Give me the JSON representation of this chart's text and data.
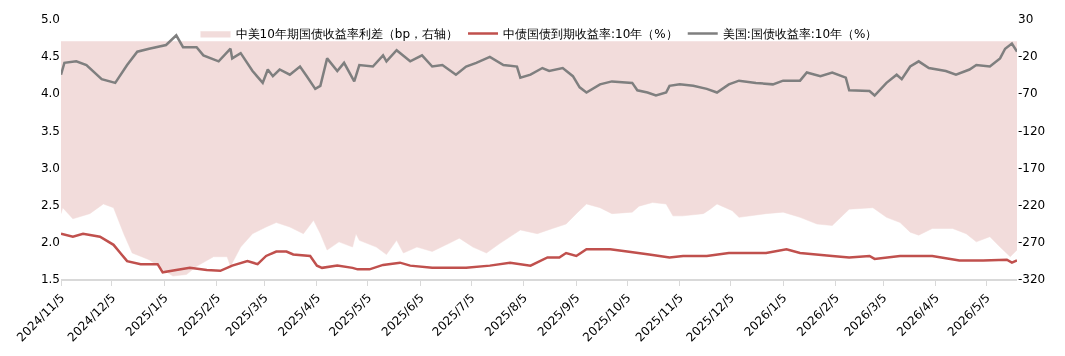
{
  "chart_data": {
    "type": "line",
    "xlim": [
      "2024-11-05",
      "2026-05-23"
    ],
    "xticks": [
      {
        "value": "2024-11-05",
        "label": "2024/11/5"
      },
      {
        "value": "2024-12-05",
        "label": "2024/12/5"
      },
      {
        "value": "2025-01-05",
        "label": "2025/1/5"
      },
      {
        "value": "2025-02-05",
        "label": "2025/2/5"
      },
      {
        "value": "2025-03-05",
        "label": "2025/3/5"
      },
      {
        "value": "2025-04-05",
        "label": "2025/4/5"
      },
      {
        "value": "2025-05-05",
        "label": "2025/5/5"
      },
      {
        "value": "2025-06-05",
        "label": "2025/6/5"
      },
      {
        "value": "2025-07-05",
        "label": "2025/7/5"
      },
      {
        "value": "2025-08-05",
        "label": "2025/8/5"
      },
      {
        "value": "2025-09-05",
        "label": "2025/9/5"
      },
      {
        "value": "2025-10-05",
        "label": "2025/10/5"
      },
      {
        "value": "2025-11-05",
        "label": "2025/11/5"
      },
      {
        "value": "2025-12-05",
        "label": "2025/12/5"
      },
      {
        "value": "2026-01-05",
        "label": "2026/1/5"
      },
      {
        "value": "2026-02-05",
        "label": "2026/2/5"
      },
      {
        "value": "2026-03-05",
        "label": "2026/3/5"
      },
      {
        "value": "2026-04-05",
        "label": "2026/4/5"
      },
      {
        "value": "2026-05-05",
        "label": "2026/5/5"
      }
    ],
    "ylim": [
      1.5,
      5.0
    ],
    "yticks": [
      1.5,
      {
        "value": 2,
        "label": "2.0"
      },
      2.5,
      {
        "value": 3,
        "label": "3.0"
      },
      3.5,
      {
        "value": 4,
        "label": "4.0"
      },
      4.5,
      {
        "value": 5,
        "label": "5.0"
      }
    ],
    "y2lim": [
      -320,
      30
    ],
    "y2ticks": [
      -320,
      -270,
      -220,
      -170,
      -120,
      -70,
      -20,
      30
    ],
    "legend": "top",
    "series": [
      {
        "name": "中美10年期国债收益率利差（bp，右轴）",
        "type": "area",
        "axis": "y2",
        "color": "#f2dcdb",
        "x": [
          "2024-11-05",
          "2024-11-06",
          "2024-11-12",
          "2024-11-22",
          "2024-11-30",
          "2024-12-06",
          "2024-12-12",
          "2024-12-17",
          "2024-12-27",
          "2025-01-04",
          "2025-01-10",
          "2025-01-18",
          "2025-01-24",
          "2025-02-03",
          "2025-02-11",
          "2025-02-13",
          "2025-02-19",
          "2025-02-26",
          "2025-03-06",
          "2025-03-12",
          "2025-03-20",
          "2025-03-28",
          "2025-04-03",
          "2025-04-07",
          "2025-04-11",
          "2025-04-18",
          "2025-04-26",
          "2025-04-28",
          "2025-04-30",
          "2025-05-10",
          "2025-05-16",
          "2025-05-22",
          "2025-05-26",
          "2025-06-03",
          "2025-06-12",
          "2025-06-22",
          "2025-06-28",
          "2025-07-06",
          "2025-07-14",
          "2025-07-22",
          "2025-08-03",
          "2025-08-13",
          "2025-08-22",
          "2025-08-30",
          "2025-09-05",
          "2025-09-11",
          "2025-09-19",
          "2025-09-26",
          "2025-10-08",
          "2025-10-12",
          "2025-10-20",
          "2025-10-28",
          "2025-11-01",
          "2025-11-07",
          "2025-11-19",
          "2025-11-23",
          "2025-11-27",
          "2025-12-06",
          "2025-12-10",
          "2025-12-26",
          "2026-01-05",
          "2026-01-15",
          "2026-01-25",
          "2026-02-03",
          "2026-02-13",
          "2026-02-27",
          "2026-03-07",
          "2026-03-15",
          "2026-03-21",
          "2026-03-26",
          "2026-04-03",
          "2026-04-15",
          "2026-04-23",
          "2026-04-29",
          "2026-05-07",
          "2026-05-13",
          "2026-05-19",
          "2026-05-23"
        ],
        "values": [
          -232,
          -224,
          -239,
          -232,
          -219,
          -224,
          -259,
          -285,
          -294,
          -307,
          -316,
          -314,
          -303,
          -290,
          -290,
          -303,
          -277,
          -259,
          -250,
          -244,
          -250,
          -259,
          -241,
          -259,
          -281,
          -270,
          -277,
          -259,
          -268,
          -277,
          -287,
          -268,
          -285,
          -277,
          -283,
          -272,
          -265,
          -277,
          -285,
          -272,
          -254,
          -259,
          -252,
          -246,
          -232,
          -219,
          -224,
          -232,
          -230,
          -222,
          -217,
          -219,
          -235,
          -235,
          -232,
          -226,
          -219,
          -228,
          -237,
          -232,
          -230,
          -237,
          -246,
          -248,
          -226,
          -224,
          -237,
          -244,
          -257,
          -261,
          -252,
          -252,
          -259,
          -270,
          -263,
          -277,
          -290,
          -281
        ]
      },
      {
        "name": "中债国债到期收益率:10年（%）",
        "color": "#c0504d",
        "x": [
          "2024-11-05",
          "2024-11-12",
          "2024-11-18",
          "2024-11-28",
          "2024-12-06",
          "2024-12-10",
          "2024-12-14",
          "2024-12-22",
          "2025-01-01",
          "2025-01-04",
          "2025-01-12",
          "2025-01-20",
          "2025-01-30",
          "2025-02-07",
          "2025-02-14",
          "2025-02-23",
          "2025-03-01",
          "2025-03-06",
          "2025-03-12",
          "2025-03-18",
          "2025-03-22",
          "2025-04-01",
          "2025-04-05",
          "2025-04-08",
          "2025-04-17",
          "2025-04-26",
          "2025-04-29",
          "2025-05-06",
          "2025-05-14",
          "2025-05-24",
          "2025-05-30",
          "2025-06-12",
          "2025-07-02",
          "2025-07-16",
          "2025-07-28",
          "2025-08-09",
          "2025-08-19",
          "2025-08-26",
          "2025-08-30",
          "2025-09-05",
          "2025-09-11",
          "2025-09-25",
          "2025-10-05",
          "2025-10-18",
          "2025-10-30",
          "2025-11-07",
          "2025-11-21",
          "2025-12-04",
          "2025-12-26",
          "2026-01-07",
          "2026-01-15",
          "2026-02-03",
          "2026-02-13",
          "2026-02-25",
          "2026-02-28",
          "2026-03-15",
          "2026-04-03",
          "2026-04-19",
          "2026-05-03",
          "2026-05-17",
          "2026-05-20",
          "2026-05-23"
        ],
        "values": [
          2.11,
          2.07,
          2.11,
          2.07,
          1.96,
          1.85,
          1.74,
          1.7,
          1.7,
          1.59,
          1.62,
          1.65,
          1.62,
          1.61,
          1.68,
          1.74,
          1.7,
          1.81,
          1.87,
          1.87,
          1.83,
          1.81,
          1.68,
          1.65,
          1.68,
          1.65,
          1.63,
          1.63,
          1.69,
          1.72,
          1.68,
          1.65,
          1.65,
          1.68,
          1.72,
          1.68,
          1.79,
          1.79,
          1.85,
          1.81,
          1.9,
          1.9,
          1.87,
          1.83,
          1.79,
          1.81,
          1.81,
          1.85,
          1.85,
          1.9,
          1.85,
          1.81,
          1.79,
          1.81,
          1.77,
          1.81,
          1.81,
          1.75,
          1.75,
          1.76,
          1.72,
          1.75
        ]
      },
      {
        "name": "美国:国债收益率:10年（%）",
        "color": "#7f7f7f",
        "x": [
          "2024-11-05",
          "2024-11-07",
          "2024-11-14",
          "2024-11-20",
          "2024-11-29",
          "2024-12-07",
          "2024-12-14",
          "2024-12-20",
          "2024-12-27",
          "2025-01-06",
          "2025-01-12",
          "2025-01-16",
          "2025-01-24",
          "2025-01-28",
          "2025-02-06",
          "2025-02-13",
          "2025-02-14",
          "2025-02-19",
          "2025-02-26",
          "2025-03-04",
          "2025-03-07",
          "2025-03-10",
          "2025-03-14",
          "2025-03-20",
          "2025-03-26",
          "2025-03-30",
          "2025-04-04",
          "2025-04-07",
          "2025-04-11",
          "2025-04-17",
          "2025-04-21",
          "2025-04-27",
          "2025-04-30",
          "2025-05-08",
          "2025-05-14",
          "2025-05-16",
          "2025-05-22",
          "2025-05-30",
          "2025-06-06",
          "2025-06-12",
          "2025-06-18",
          "2025-06-26",
          "2025-07-02",
          "2025-07-08",
          "2025-07-16",
          "2025-07-24",
          "2025-08-01",
          "2025-08-03",
          "2025-08-09",
          "2025-08-16",
          "2025-08-20",
          "2025-08-28",
          "2025-09-03",
          "2025-09-07",
          "2025-09-11",
          "2025-09-19",
          "2025-09-26",
          "2025-10-08",
          "2025-10-11",
          "2025-10-17",
          "2025-10-22",
          "2025-10-28",
          "2025-10-30",
          "2025-11-05",
          "2025-11-13",
          "2025-11-21",
          "2025-11-27",
          "2025-12-04",
          "2025-12-10",
          "2025-12-20",
          "2025-12-30",
          "2026-01-05",
          "2026-01-15",
          "2026-01-19",
          "2026-01-27",
          "2026-02-03",
          "2026-02-11",
          "2026-02-13",
          "2026-02-25",
          "2026-02-28",
          "2026-03-07",
          "2026-03-13",
          "2026-03-16",
          "2026-03-21",
          "2026-03-26",
          "2026-04-01",
          "2026-04-11",
          "2026-04-17",
          "2026-04-25",
          "2026-04-29",
          "2026-05-07",
          "2026-05-13",
          "2026-05-16",
          "2026-05-20",
          "2026-05-23"
        ],
        "values": [
          4.25,
          4.41,
          4.43,
          4.38,
          4.19,
          4.14,
          4.38,
          4.56,
          4.6,
          4.65,
          4.78,
          4.62,
          4.62,
          4.51,
          4.43,
          4.6,
          4.47,
          4.54,
          4.3,
          4.14,
          4.32,
          4.23,
          4.32,
          4.25,
          4.36,
          4.23,
          4.06,
          4.1,
          4.47,
          4.3,
          4.41,
          4.16,
          4.38,
          4.36,
          4.51,
          4.43,
          4.58,
          4.43,
          4.51,
          4.36,
          4.38,
          4.25,
          4.36,
          4.41,
          4.49,
          4.38,
          4.36,
          4.21,
          4.25,
          4.34,
          4.3,
          4.34,
          4.23,
          4.08,
          4.01,
          4.12,
          4.16,
          4.14,
          4.04,
          4.01,
          3.97,
          4.01,
          4.1,
          4.12,
          4.1,
          4.06,
          4.01,
          4.12,
          4.17,
          4.14,
          4.12,
          4.17,
          4.17,
          4.28,
          4.23,
          4.28,
          4.21,
          4.04,
          4.03,
          3.97,
          4.14,
          4.25,
          4.19,
          4.36,
          4.43,
          4.34,
          4.3,
          4.25,
          4.32,
          4.38,
          4.36,
          4.47,
          4.6,
          4.67,
          4.56
        ]
      }
    ]
  }
}
